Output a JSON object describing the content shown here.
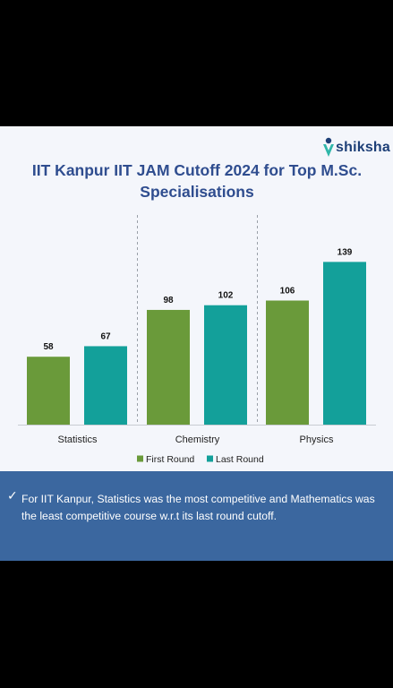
{
  "brand": {
    "name": "shiksha"
  },
  "colors": {
    "first_round": "#6a9a3a",
    "last_round": "#13a09a",
    "title": "#2f4d8f",
    "footer_bg": "#3b679f"
  },
  "chart_data": {
    "type": "bar",
    "title": "IIT Kanpur IIT JAM Cutoff 2024 for Top M.Sc. Specialisations",
    "categories": [
      "Statistics",
      "Chemistry",
      "Physics"
    ],
    "series": [
      {
        "name": "First Round",
        "values": [
          58,
          98,
          106
        ]
      },
      {
        "name": "Last Round",
        "values": [
          67,
          102,
          139
        ]
      }
    ],
    "ylim": [
      0,
      150
    ],
    "grid": false,
    "legend_position": "bottom"
  },
  "footer": {
    "icon": "check-icon",
    "text": "For IIT Kanpur, Statistics was the most competitive and Mathematics was the least competitive course w.r.t its last round cutoff."
  }
}
